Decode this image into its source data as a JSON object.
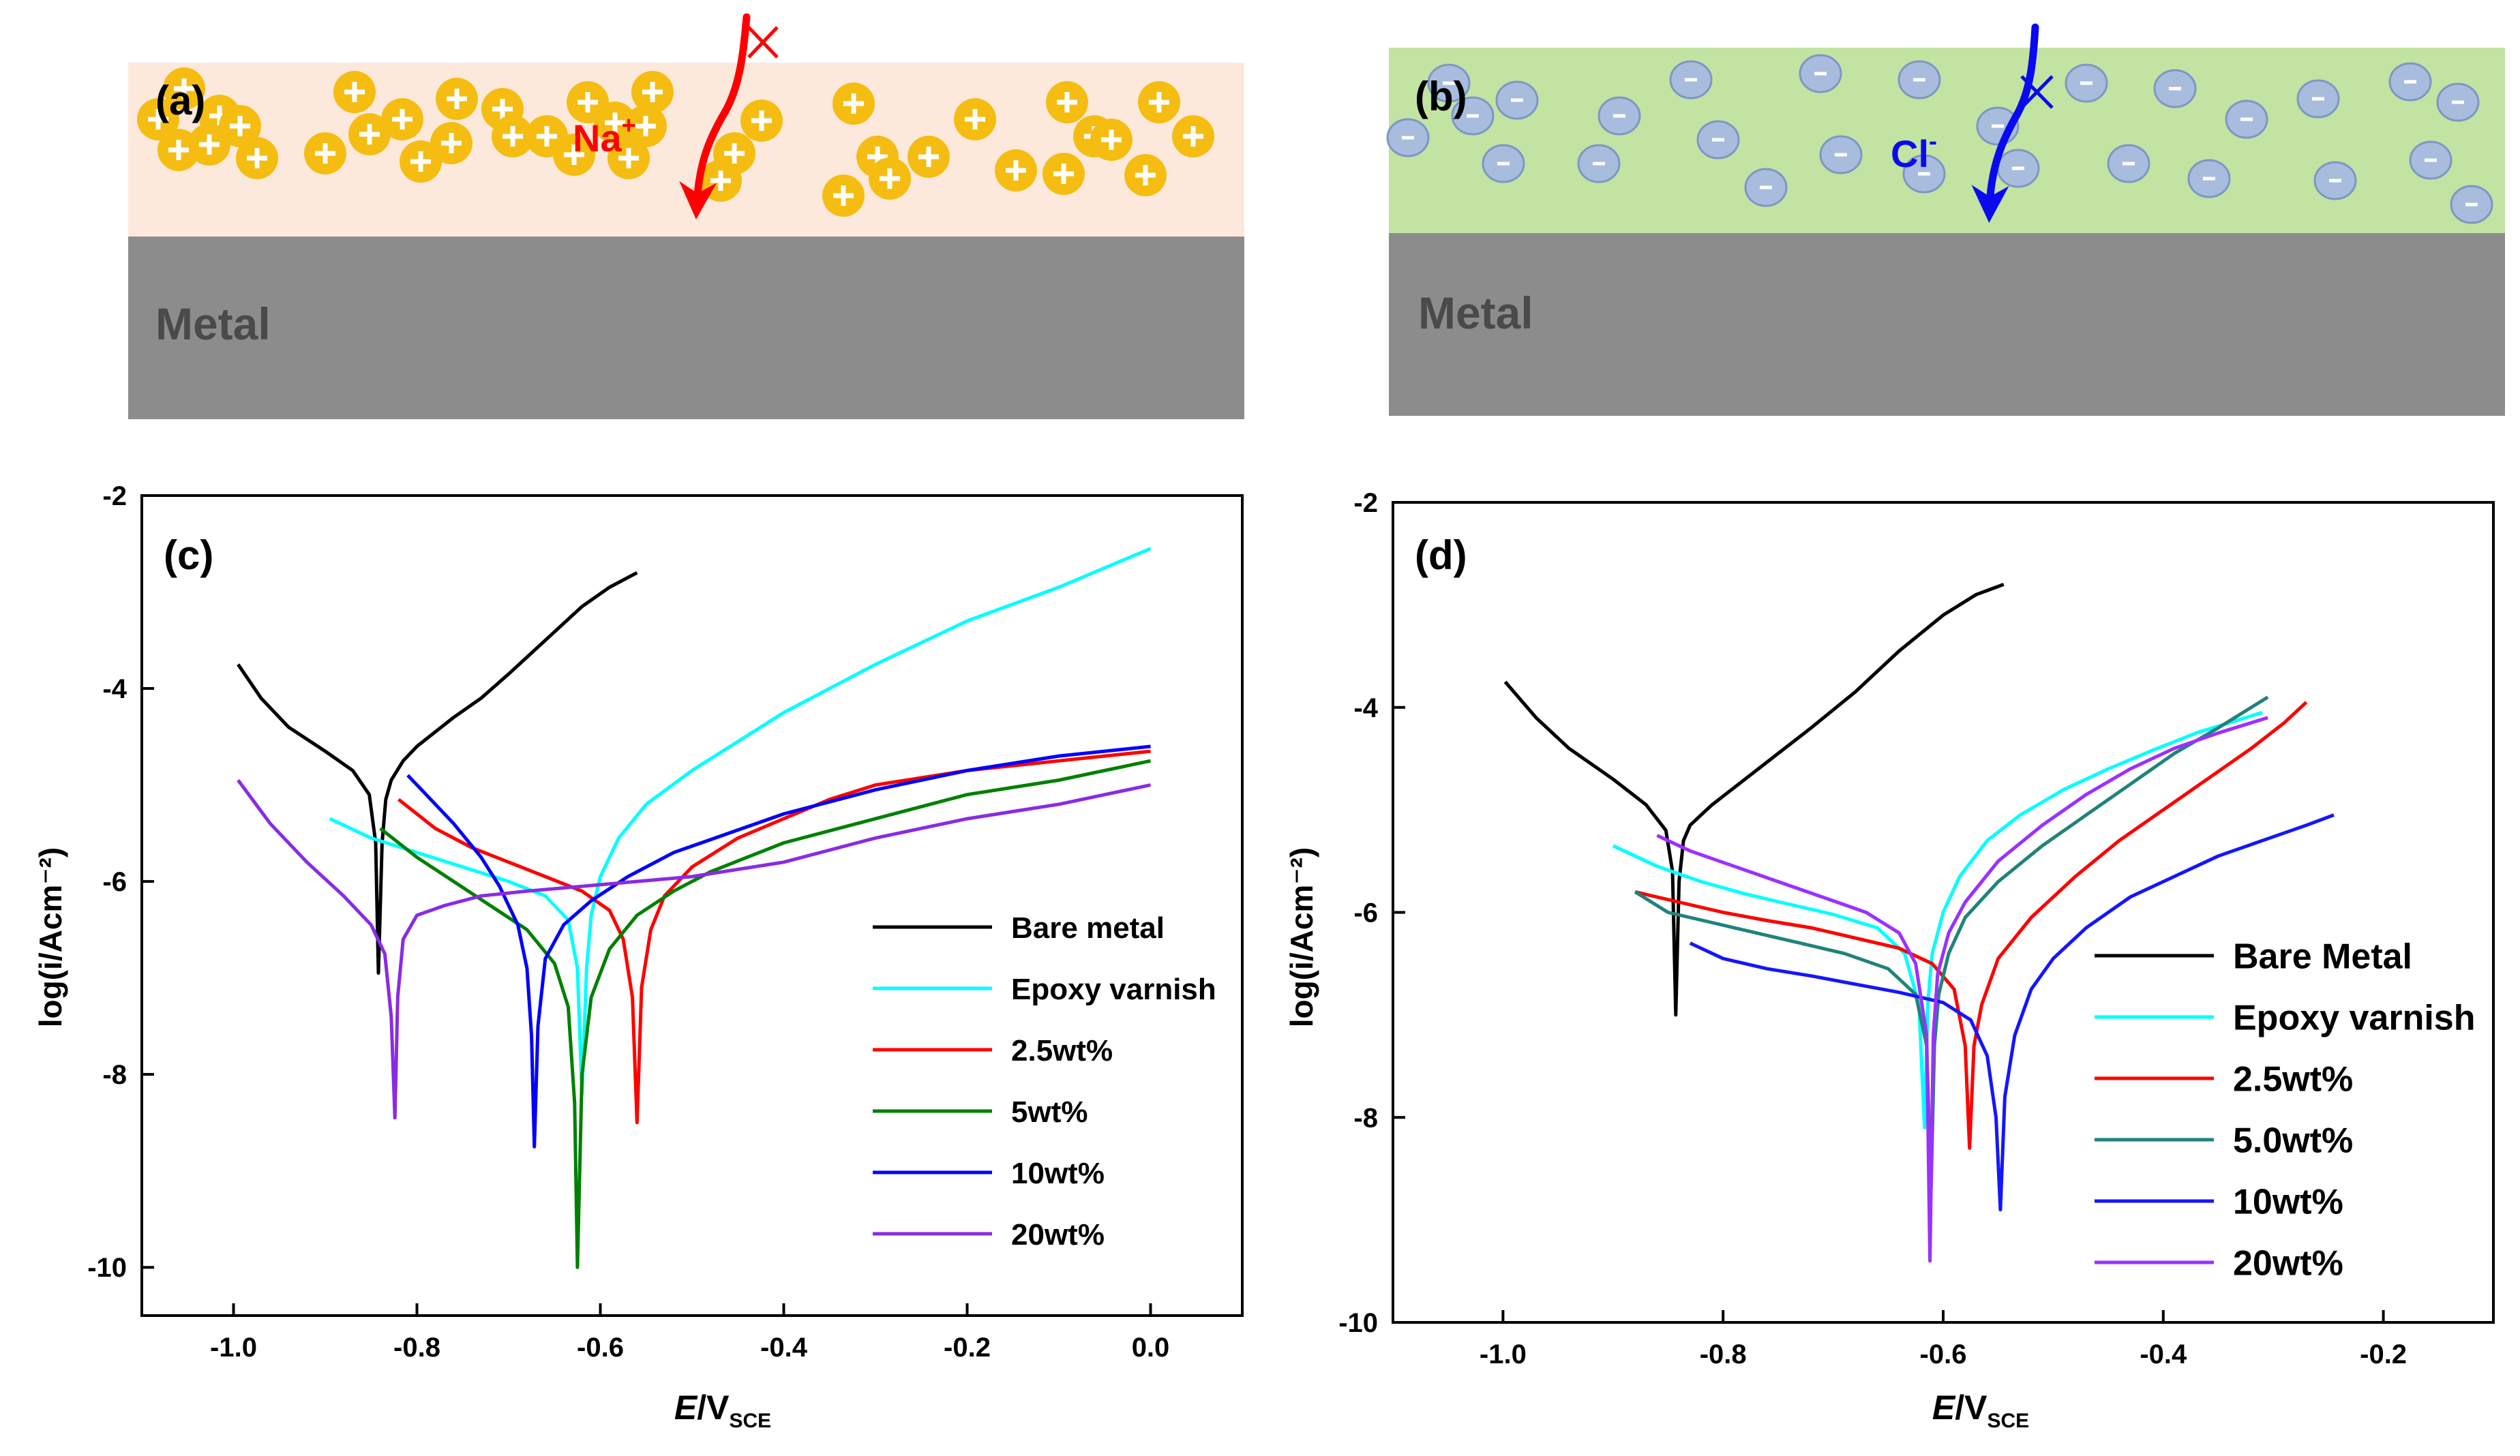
{
  "colors": {
    "coating_a": "#fde9dc",
    "coating_b": "#c2e3a2",
    "metal": "#8c8c8c",
    "metal_text": "#4a4a4a",
    "cation": "#f5bd12",
    "anion_fill": "#a8bcde",
    "anion_stroke": "#7f96c4",
    "na_arrow": "#ff0000",
    "cl_arrow": "#0a0af0"
  },
  "schematics": [
    {
      "panel_label": "(a)",
      "metal_label": "Metal",
      "ion_label": "Na",
      "ion_charge": "+",
      "ion_symbol": "+"
    },
    {
      "panel_label": "(b)",
      "metal_label": "Metal",
      "ion_label": "Cl",
      "ion_charge": "-",
      "ion_symbol": "-"
    }
  ],
  "chart_data": [
    {
      "type": "line",
      "panel_label": "(c)",
      "xlabel_italic": "E",
      "xlabel_rest": "/V",
      "xlabel_sub": "SCE",
      "ylabel": "log(i/Acm⁻²)",
      "xlim": [
        -1.1,
        0.1
      ],
      "ylim": [
        -10.5,
        -2
      ],
      "xticks": [
        -1.0,
        -0.8,
        -0.6,
        -0.4,
        -0.2,
        0.0
      ],
      "xtick_labels": [
        "-1.0",
        "-0.8",
        "-0.6",
        "-0.4",
        "-0.2",
        "0.0"
      ],
      "yticks": [
        -10,
        -8,
        -6,
        -4,
        -2
      ],
      "ytick_labels": [
        "-10",
        "-8",
        "-6",
        "-4",
        "-2"
      ],
      "series": [
        {
          "name": "Bare metal",
          "color": "#000000",
          "x": [
            -0.995,
            -0.97,
            -0.94,
            -0.9,
            -0.87,
            -0.852,
            -0.845,
            -0.842,
            -0.838,
            -0.834,
            -0.828,
            -0.815,
            -0.8,
            -0.78,
            -0.76,
            -0.73,
            -0.7,
            -0.66,
            -0.62,
            -0.59,
            -0.56
          ],
          "y": [
            -3.75,
            -4.1,
            -4.4,
            -4.65,
            -4.85,
            -5.1,
            -5.6,
            -6.95,
            -5.6,
            -5.15,
            -4.95,
            -4.75,
            -4.6,
            -4.45,
            -4.3,
            -4.1,
            -3.85,
            -3.5,
            -3.15,
            -2.95,
            -2.8
          ]
        },
        {
          "name": "Epoxy varnish",
          "color": "#00ffff",
          "x": [
            -0.895,
            -0.85,
            -0.8,
            -0.75,
            -0.7,
            -0.66,
            -0.635,
            -0.625,
            -0.62,
            -0.615,
            -0.61,
            -0.6,
            -0.58,
            -0.55,
            -0.5,
            -0.45,
            -0.4,
            -0.3,
            -0.2,
            -0.1,
            0.0
          ],
          "y": [
            -5.35,
            -5.55,
            -5.7,
            -5.85,
            -6.0,
            -6.15,
            -6.4,
            -6.9,
            -8.2,
            -6.9,
            -6.35,
            -5.95,
            -5.55,
            -5.2,
            -4.85,
            -4.55,
            -4.25,
            -3.75,
            -3.3,
            -2.95,
            -2.55
          ]
        },
        {
          "name": "2.5wt%",
          "color": "#ff0000",
          "x": [
            -0.82,
            -0.78,
            -0.74,
            -0.7,
            -0.66,
            -0.62,
            -0.59,
            -0.575,
            -0.565,
            -0.56,
            -0.555,
            -0.545,
            -0.53,
            -0.5,
            -0.45,
            -0.4,
            -0.35,
            -0.3,
            -0.2,
            -0.1,
            0.0
          ],
          "y": [
            -5.15,
            -5.45,
            -5.65,
            -5.8,
            -5.95,
            -6.1,
            -6.3,
            -6.6,
            -7.2,
            -8.5,
            -7.1,
            -6.5,
            -6.15,
            -5.85,
            -5.55,
            -5.35,
            -5.15,
            -5.0,
            -4.85,
            -4.75,
            -4.65
          ]
        },
        {
          "name": "5wt%",
          "color": "#008000",
          "x": [
            -0.84,
            -0.8,
            -0.76,
            -0.72,
            -0.68,
            -0.65,
            -0.635,
            -0.628,
            -0.625,
            -0.62,
            -0.61,
            -0.59,
            -0.56,
            -0.52,
            -0.48,
            -0.44,
            -0.4,
            -0.3,
            -0.2,
            -0.1,
            0.0
          ],
          "y": [
            -5.45,
            -5.75,
            -6.0,
            -6.25,
            -6.5,
            -6.85,
            -7.3,
            -8.3,
            -10.0,
            -8.0,
            -7.2,
            -6.7,
            -6.35,
            -6.1,
            -5.9,
            -5.75,
            -5.6,
            -5.35,
            -5.1,
            -4.95,
            -4.75
          ]
        },
        {
          "name": "10wt%",
          "color": "#0000ff",
          "x": [
            -0.81,
            -0.79,
            -0.76,
            -0.73,
            -0.71,
            -0.69,
            -0.68,
            -0.675,
            -0.672,
            -0.668,
            -0.66,
            -0.64,
            -0.61,
            -0.57,
            -0.52,
            -0.46,
            -0.4,
            -0.3,
            -0.2,
            -0.1,
            0.0
          ],
          "y": [
            -4.9,
            -5.1,
            -5.4,
            -5.75,
            -6.05,
            -6.45,
            -6.9,
            -7.6,
            -8.75,
            -7.5,
            -6.8,
            -6.45,
            -6.2,
            -5.95,
            -5.7,
            -5.5,
            -5.3,
            -5.05,
            -4.85,
            -4.7,
            -4.6
          ]
        },
        {
          "name": "20wt%",
          "color": "#8a2be2",
          "x": [
            -0.995,
            -0.96,
            -0.92,
            -0.88,
            -0.85,
            -0.835,
            -0.828,
            -0.824,
            -0.821,
            -0.815,
            -0.8,
            -0.77,
            -0.73,
            -0.68,
            -0.62,
            -0.56,
            -0.5,
            -0.4,
            -0.3,
            -0.2,
            -0.1,
            0.0
          ],
          "y": [
            -4.95,
            -5.4,
            -5.8,
            -6.15,
            -6.45,
            -6.75,
            -7.4,
            -8.45,
            -7.2,
            -6.6,
            -6.35,
            -6.25,
            -6.15,
            -6.1,
            -6.05,
            -6.0,
            -5.95,
            -5.8,
            -5.55,
            -5.35,
            -5.2,
            -5.0
          ]
        }
      ],
      "legend_position": "bottom-right"
    },
    {
      "type": "line",
      "panel_label": "(d)",
      "xlabel_italic": "E",
      "xlabel_rest": "/V",
      "xlabel_sub": "SCE",
      "ylabel": "log(i/Acm⁻²)",
      "xlim": [
        -1.1,
        -0.1
      ],
      "ylim": [
        -10,
        -2
      ],
      "xticks": [
        -1.0,
        -0.8,
        -0.6,
        -0.4,
        -0.2
      ],
      "xtick_labels": [
        "-1.0",
        "-0.8",
        "-0.6",
        "-0.4",
        "-0.2"
      ],
      "yticks": [
        -10,
        -8,
        -6,
        -4,
        -2
      ],
      "ytick_labels": [
        "-10",
        "-8",
        "-6",
        "-4",
        "-2"
      ],
      "series": [
        {
          "name": "Bare Metal",
          "color": "#000000",
          "x": [
            -0.998,
            -0.97,
            -0.94,
            -0.9,
            -0.87,
            -0.852,
            -0.846,
            -0.843,
            -0.84,
            -0.836,
            -0.83,
            -0.82,
            -0.81,
            -0.78,
            -0.75,
            -0.72,
            -0.68,
            -0.64,
            -0.6,
            -0.57,
            -0.545
          ],
          "y": [
            -3.75,
            -4.1,
            -4.4,
            -4.7,
            -4.95,
            -5.2,
            -5.6,
            -7.0,
            -5.7,
            -5.3,
            -5.15,
            -5.05,
            -4.95,
            -4.7,
            -4.45,
            -4.2,
            -3.85,
            -3.45,
            -3.1,
            -2.9,
            -2.8
          ]
        },
        {
          "name": "Epoxy varnish",
          "color": "#00ffff",
          "x": [
            -0.9,
            -0.86,
            -0.82,
            -0.78,
            -0.74,
            -0.7,
            -0.66,
            -0.635,
            -0.622,
            -0.617,
            -0.614,
            -0.61,
            -0.6,
            -0.585,
            -0.56,
            -0.53,
            -0.49,
            -0.45,
            -0.41,
            -0.37,
            -0.34,
            -0.31
          ],
          "y": [
            -5.35,
            -5.55,
            -5.7,
            -5.82,
            -5.92,
            -6.02,
            -6.15,
            -6.4,
            -6.9,
            -8.1,
            -6.9,
            -6.4,
            -6.0,
            -5.65,
            -5.3,
            -5.05,
            -4.8,
            -4.6,
            -4.42,
            -4.25,
            -4.15,
            -4.05
          ]
        },
        {
          "name": "2.5wt%",
          "color": "#ff0000",
          "x": [
            -0.88,
            -0.84,
            -0.8,
            -0.76,
            -0.72,
            -0.68,
            -0.64,
            -0.61,
            -0.59,
            -0.58,
            -0.576,
            -0.572,
            -0.565,
            -0.55,
            -0.52,
            -0.48,
            -0.44,
            -0.4,
            -0.36,
            -0.32,
            -0.29,
            -0.27
          ],
          "y": [
            -5.8,
            -5.9,
            -6.0,
            -6.08,
            -6.15,
            -6.25,
            -6.35,
            -6.5,
            -6.75,
            -7.3,
            -8.3,
            -7.3,
            -6.9,
            -6.45,
            -6.05,
            -5.65,
            -5.3,
            -5.0,
            -4.7,
            -4.4,
            -4.15,
            -3.95
          ]
        },
        {
          "name": "5.0wt%",
          "color": "#20837a",
          "x": [
            -0.88,
            -0.85,
            -0.81,
            -0.77,
            -0.73,
            -0.69,
            -0.65,
            -0.625,
            -0.615,
            -0.611,
            -0.608,
            -0.604,
            -0.595,
            -0.58,
            -0.55,
            -0.51,
            -0.47,
            -0.43,
            -0.39,
            -0.35,
            -0.32,
            -0.305
          ],
          "y": [
            -5.8,
            -6.0,
            -6.1,
            -6.2,
            -6.3,
            -6.4,
            -6.55,
            -6.8,
            -7.3,
            -8.7,
            -7.3,
            -6.8,
            -6.4,
            -6.05,
            -5.7,
            -5.35,
            -5.05,
            -4.75,
            -4.45,
            -4.2,
            -4.0,
            -3.9
          ]
        },
        {
          "name": "10wt%",
          "color": "#1515ff",
          "x": [
            -0.83,
            -0.8,
            -0.76,
            -0.72,
            -0.68,
            -0.64,
            -0.6,
            -0.575,
            -0.56,
            -0.552,
            -0.548,
            -0.544,
            -0.535,
            -0.52,
            -0.5,
            -0.47,
            -0.43,
            -0.39,
            -0.35,
            -0.31,
            -0.27,
            -0.245
          ],
          "y": [
            -6.3,
            -6.45,
            -6.55,
            -6.62,
            -6.7,
            -6.78,
            -6.88,
            -7.05,
            -7.4,
            -8.0,
            -8.9,
            -7.8,
            -7.2,
            -6.75,
            -6.45,
            -6.15,
            -5.85,
            -5.65,
            -5.45,
            -5.3,
            -5.15,
            -5.05
          ]
        },
        {
          "name": "20wt%",
          "color": "#9b30ff",
          "x": [
            -0.86,
            -0.83,
            -0.79,
            -0.75,
            -0.71,
            -0.67,
            -0.64,
            -0.625,
            -0.615,
            -0.612,
            -0.609,
            -0.605,
            -0.595,
            -0.58,
            -0.55,
            -0.51,
            -0.47,
            -0.43,
            -0.39,
            -0.35,
            -0.32,
            -0.305
          ],
          "y": [
            -5.25,
            -5.4,
            -5.55,
            -5.7,
            -5.85,
            -6.0,
            -6.2,
            -6.5,
            -7.2,
            -9.4,
            -7.2,
            -6.6,
            -6.2,
            -5.9,
            -5.5,
            -5.15,
            -4.85,
            -4.6,
            -4.4,
            -4.25,
            -4.15,
            -4.1
          ]
        }
      ],
      "legend_position": "bottom-right"
    }
  ]
}
